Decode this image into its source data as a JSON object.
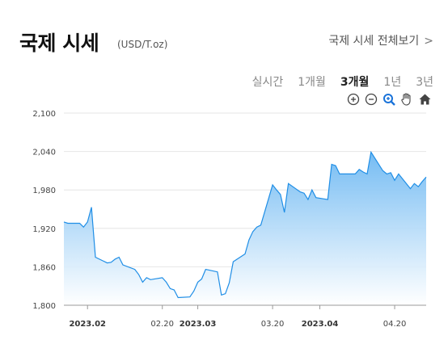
{
  "header": {
    "title": "국제 시세",
    "unit": "(USD/T.oz)",
    "all_link": "국제 시세 전체보기",
    "all_link_chevron": ">"
  },
  "periods": [
    {
      "label": "실시간",
      "active": false
    },
    {
      "label": "1개월",
      "active": false
    },
    {
      "label": "3개월",
      "active": true
    },
    {
      "label": "1년",
      "active": false
    },
    {
      "label": "3년",
      "active": false
    }
  ],
  "tools": [
    "zoom-in-icon",
    "zoom-out-icon",
    "zoom-select-icon",
    "pan-hand-icon",
    "home-icon"
  ],
  "colors": {
    "line": "#1f8ee6",
    "fill_top": "#6db8f2",
    "fill_bottom": "#ffffff",
    "grid": "#e6e6e6"
  },
  "chart_data": {
    "type": "area",
    "ylim": [
      1800,
      2100
    ],
    "yticks": [
      "1,800",
      "1,860",
      "1,920",
      "1,980",
      "2,040",
      "2,100"
    ],
    "xticks": [
      {
        "label": "2023.02",
        "date": "2023-02-01",
        "bold": true
      },
      {
        "label": "02.20",
        "date": "2023-02-20",
        "bold": false
      },
      {
        "label": "2023.03",
        "date": "2023-03-01",
        "bold": true
      },
      {
        "label": "03.20",
        "date": "2023-03-20",
        "bold": false
      },
      {
        "label": "2023.04",
        "date": "2023-04-01",
        "bold": true
      },
      {
        "label": "04.20",
        "date": "2023-04-20",
        "bold": false
      }
    ],
    "x": [
      "2023-01-26",
      "2023-01-27",
      "2023-01-30",
      "2023-01-31",
      "2023-02-01",
      "2023-02-02",
      "2023-02-03",
      "2023-02-06",
      "2023-02-07",
      "2023-02-08",
      "2023-02-09",
      "2023-02-10",
      "2023-02-13",
      "2023-02-14",
      "2023-02-15",
      "2023-02-16",
      "2023-02-17",
      "2023-02-20",
      "2023-02-21",
      "2023-02-22",
      "2023-02-23",
      "2023-02-24",
      "2023-02-27",
      "2023-02-28",
      "2023-03-01",
      "2023-03-02",
      "2023-03-03",
      "2023-03-06",
      "2023-03-07",
      "2023-03-08",
      "2023-03-09",
      "2023-03-10",
      "2023-03-13",
      "2023-03-14",
      "2023-03-15",
      "2023-03-16",
      "2023-03-17",
      "2023-03-20",
      "2023-03-21",
      "2023-03-22",
      "2023-03-23",
      "2023-03-24",
      "2023-03-27",
      "2023-03-28",
      "2023-03-29",
      "2023-03-30",
      "2023-03-31",
      "2023-04-03",
      "2023-04-04",
      "2023-04-05",
      "2023-04-06",
      "2023-04-10",
      "2023-04-11",
      "2023-04-12",
      "2023-04-13",
      "2023-04-14",
      "2023-04-17",
      "2023-04-18",
      "2023-04-19",
      "2023-04-20",
      "2023-04-21",
      "2023-04-24",
      "2023-04-25",
      "2023-04-26",
      "2023-04-27",
      "2023-04-28"
    ],
    "values": [
      1930,
      1928,
      1928,
      1922,
      1930,
      1953,
      1875,
      1866,
      1867,
      1872,
      1875,
      1863,
      1856,
      1848,
      1836,
      1843,
      1840,
      1843,
      1836,
      1826,
      1824,
      1812,
      1813,
      1822,
      1836,
      1841,
      1856,
      1852,
      1816,
      1818,
      1835,
      1868,
      1880,
      1902,
      1915,
      1922,
      1925,
      1988,
      1980,
      1973,
      1945,
      1990,
      1977,
      1975,
      1965,
      1980,
      1968,
      1965,
      2020,
      2018,
      2005,
      2005,
      2012,
      2008,
      2005,
      2039,
      2010,
      2005,
      2007,
      1995,
      2005,
      1982,
      1990,
      1985,
      1993,
      2000
    ]
  }
}
